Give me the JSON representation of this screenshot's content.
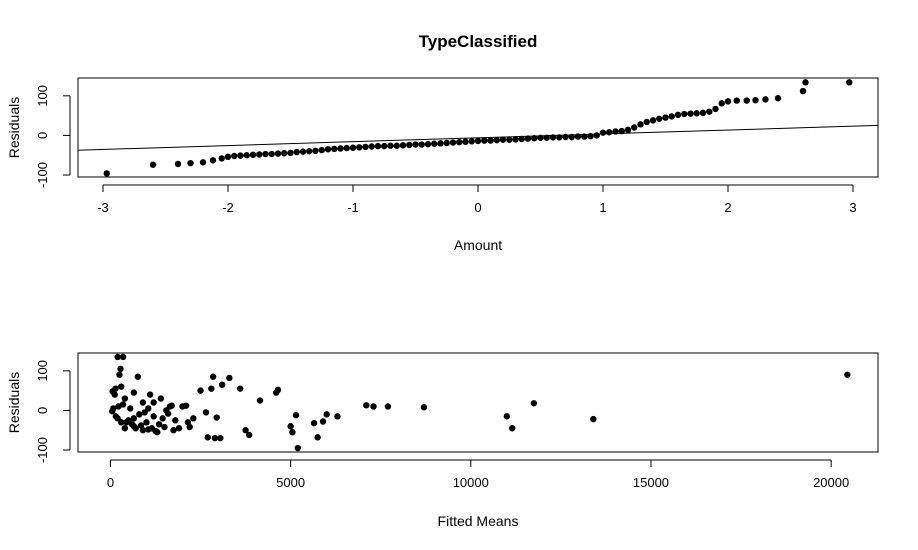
{
  "title": "TypeClassified",
  "chart_data": [
    {
      "type": "scatter",
      "title": "TypeClassified",
      "xlabel": "Amount",
      "ylabel": "Residuals",
      "xlim": [
        -3.2,
        3.2
      ],
      "ylim": [
        -105,
        145
      ],
      "x_ticks": [
        "-3",
        "-2",
        "-1",
        "0",
        "1",
        "2",
        "3"
      ],
      "y_ticks": [
        "-100",
        "0",
        "100"
      ],
      "y_tick_values": [
        -100,
        0,
        100
      ],
      "x_tick_values": [
        -3,
        -2,
        -1,
        0,
        1,
        2,
        3
      ],
      "grid": false,
      "reference_line": {
        "intercept": -6,
        "slope": 9.8
      },
      "points": [
        [
          -2.97,
          -96
        ],
        [
          -2.6,
          -74
        ],
        [
          -2.4,
          -72
        ],
        [
          -2.3,
          -70
        ],
        [
          -2.2,
          -68
        ],
        [
          -2.12,
          -63
        ],
        [
          -2.05,
          -58
        ],
        [
          -2.0,
          -54
        ],
        [
          -1.95,
          -52
        ],
        [
          -1.9,
          -51
        ],
        [
          -1.85,
          -50
        ],
        [
          -1.8,
          -49
        ],
        [
          -1.75,
          -48
        ],
        [
          -1.7,
          -47
        ],
        [
          -1.65,
          -47
        ],
        [
          -1.6,
          -46
        ],
        [
          -1.55,
          -45
        ],
        [
          -1.5,
          -44
        ],
        [
          -1.45,
          -42
        ],
        [
          -1.4,
          -41
        ],
        [
          -1.35,
          -40
        ],
        [
          -1.3,
          -39
        ],
        [
          -1.25,
          -37
        ],
        [
          -1.2,
          -35
        ],
        [
          -1.15,
          -34
        ],
        [
          -1.1,
          -33
        ],
        [
          -1.05,
          -32
        ],
        [
          -1.0,
          -31
        ],
        [
          -0.95,
          -30
        ],
        [
          -0.9,
          -29
        ],
        [
          -0.85,
          -28
        ],
        [
          -0.8,
          -27
        ],
        [
          -0.75,
          -27
        ],
        [
          -0.7,
          -26
        ],
        [
          -0.65,
          -26
        ],
        [
          -0.6,
          -25
        ],
        [
          -0.55,
          -24
        ],
        [
          -0.5,
          -23
        ],
        [
          -0.45,
          -23
        ],
        [
          -0.4,
          -22
        ],
        [
          -0.35,
          -21
        ],
        [
          -0.3,
          -20
        ],
        [
          -0.25,
          -19
        ],
        [
          -0.2,
          -18
        ],
        [
          -0.15,
          -17
        ],
        [
          -0.1,
          -16
        ],
        [
          -0.05,
          -15
        ],
        [
          0.0,
          -14
        ],
        [
          0.05,
          -13
        ],
        [
          0.1,
          -13
        ],
        [
          0.15,
          -12
        ],
        [
          0.2,
          -11
        ],
        [
          0.25,
          -11
        ],
        [
          0.3,
          -10
        ],
        [
          0.35,
          -9
        ],
        [
          0.4,
          -8
        ],
        [
          0.45,
          -7
        ],
        [
          0.5,
          -6
        ],
        [
          0.55,
          -6
        ],
        [
          0.6,
          -5
        ],
        [
          0.65,
          -5
        ],
        [
          0.7,
          -4
        ],
        [
          0.75,
          -4
        ],
        [
          0.8,
          -3
        ],
        [
          0.85,
          -3
        ],
        [
          0.9,
          -2
        ],
        [
          0.95,
          0
        ],
        [
          1.0,
          7
        ],
        [
          1.05,
          8
        ],
        [
          1.1,
          10
        ],
        [
          1.15,
          11
        ],
        [
          1.2,
          14
        ],
        [
          1.25,
          20
        ],
        [
          1.3,
          28
        ],
        [
          1.35,
          34
        ],
        [
          1.4,
          38
        ],
        [
          1.45,
          42
        ],
        [
          1.5,
          45
        ],
        [
          1.55,
          48
        ],
        [
          1.6,
          52
        ],
        [
          1.65,
          54
        ],
        [
          1.7,
          55
        ],
        [
          1.75,
          56
        ],
        [
          1.8,
          57
        ],
        [
          1.85,
          60
        ],
        [
          1.9,
          67
        ],
        [
          1.95,
          81
        ],
        [
          2.0,
          86
        ],
        [
          2.07,
          88
        ],
        [
          2.15,
          88
        ],
        [
          2.22,
          89
        ],
        [
          2.3,
          91
        ],
        [
          2.4,
          94
        ],
        [
          2.6,
          112
        ],
        [
          2.97,
          134
        ],
        [
          2.62,
          134
        ]
      ]
    },
    {
      "type": "scatter",
      "xlabel": "Fitted Means",
      "ylabel": "Residuals",
      "xlim": [
        -900,
        21300
      ],
      "ylim": [
        -105,
        145
      ],
      "x_ticks": [
        "0",
        "5000",
        "10000",
        "15000",
        "20000"
      ],
      "x_tick_values": [
        0,
        5000,
        10000,
        15000,
        20000
      ],
      "y_ticks": [
        "-100",
        "0",
        "100"
      ],
      "y_tick_values": [
        -100,
        0,
        100
      ],
      "grid": false,
      "points": [
        [
          50,
          -2
        ],
        [
          80,
          5
        ],
        [
          60,
          48
        ],
        [
          120,
          40
        ],
        [
          140,
          55
        ],
        [
          200,
          -20
        ],
        [
          220,
          10
        ],
        [
          300,
          60
        ],
        [
          250,
          90
        ],
        [
          200,
          135
        ],
        [
          350,
          135
        ],
        [
          280,
          105
        ],
        [
          400,
          30
        ],
        [
          450,
          -30
        ],
        [
          500,
          -25
        ],
        [
          550,
          5
        ],
        [
          600,
          -35
        ],
        [
          650,
          -40
        ],
        [
          700,
          -45
        ],
        [
          760,
          85
        ],
        [
          800,
          -10
        ],
        [
          850,
          -38
        ],
        [
          900,
          20
        ],
        [
          950,
          -5
        ],
        [
          1000,
          -30
        ],
        [
          1050,
          -48
        ],
        [
          1100,
          40
        ],
        [
          1150,
          -45
        ],
        [
          1200,
          20
        ],
        [
          1250,
          -52
        ],
        [
          1300,
          -55
        ],
        [
          1350,
          -35
        ],
        [
          1400,
          30
        ],
        [
          1450,
          -20
        ],
        [
          1500,
          -42
        ],
        [
          1550,
          0
        ],
        [
          1600,
          -8
        ],
        [
          1650,
          10
        ],
        [
          1700,
          12
        ],
        [
          1800,
          -25
        ],
        [
          1900,
          -45
        ],
        [
          2000,
          10
        ],
        [
          2100,
          12
        ],
        [
          2150,
          -30
        ],
        [
          2200,
          -42
        ],
        [
          2300,
          -20
        ],
        [
          2500,
          50
        ],
        [
          2650,
          -5
        ],
        [
          2700,
          -68
        ],
        [
          2800,
          55
        ],
        [
          2850,
          85
        ],
        [
          2900,
          -70
        ],
        [
          2950,
          -18
        ],
        [
          3050,
          -70
        ],
        [
          3100,
          65
        ],
        [
          3300,
          82
        ],
        [
          3600,
          55
        ],
        [
          3750,
          -50
        ],
        [
          3850,
          -62
        ],
        [
          4150,
          25
        ],
        [
          4600,
          45
        ],
        [
          4650,
          52
        ],
        [
          5000,
          -40
        ],
        [
          5050,
          -55
        ],
        [
          5150,
          -12
        ],
        [
          5200,
          -95
        ],
        [
          5650,
          -32
        ],
        [
          5750,
          -68
        ],
        [
          5900,
          -28
        ],
        [
          6000,
          -10
        ],
        [
          6300,
          -15
        ],
        [
          7100,
          13
        ],
        [
          7300,
          10
        ],
        [
          7700,
          10
        ],
        [
          8700,
          8
        ],
        [
          11000,
          -15
        ],
        [
          11150,
          -45
        ],
        [
          11750,
          18
        ],
        [
          13400,
          -22
        ],
        [
          20450,
          90
        ],
        [
          300,
          -30
        ],
        [
          400,
          -45
        ],
        [
          150,
          -15
        ],
        [
          350,
          15
        ],
        [
          650,
          45
        ],
        [
          900,
          -50
        ],
        [
          1200,
          -15
        ],
        [
          1050,
          5
        ],
        [
          1750,
          -50
        ],
        [
          650,
          -20
        ]
      ]
    }
  ]
}
